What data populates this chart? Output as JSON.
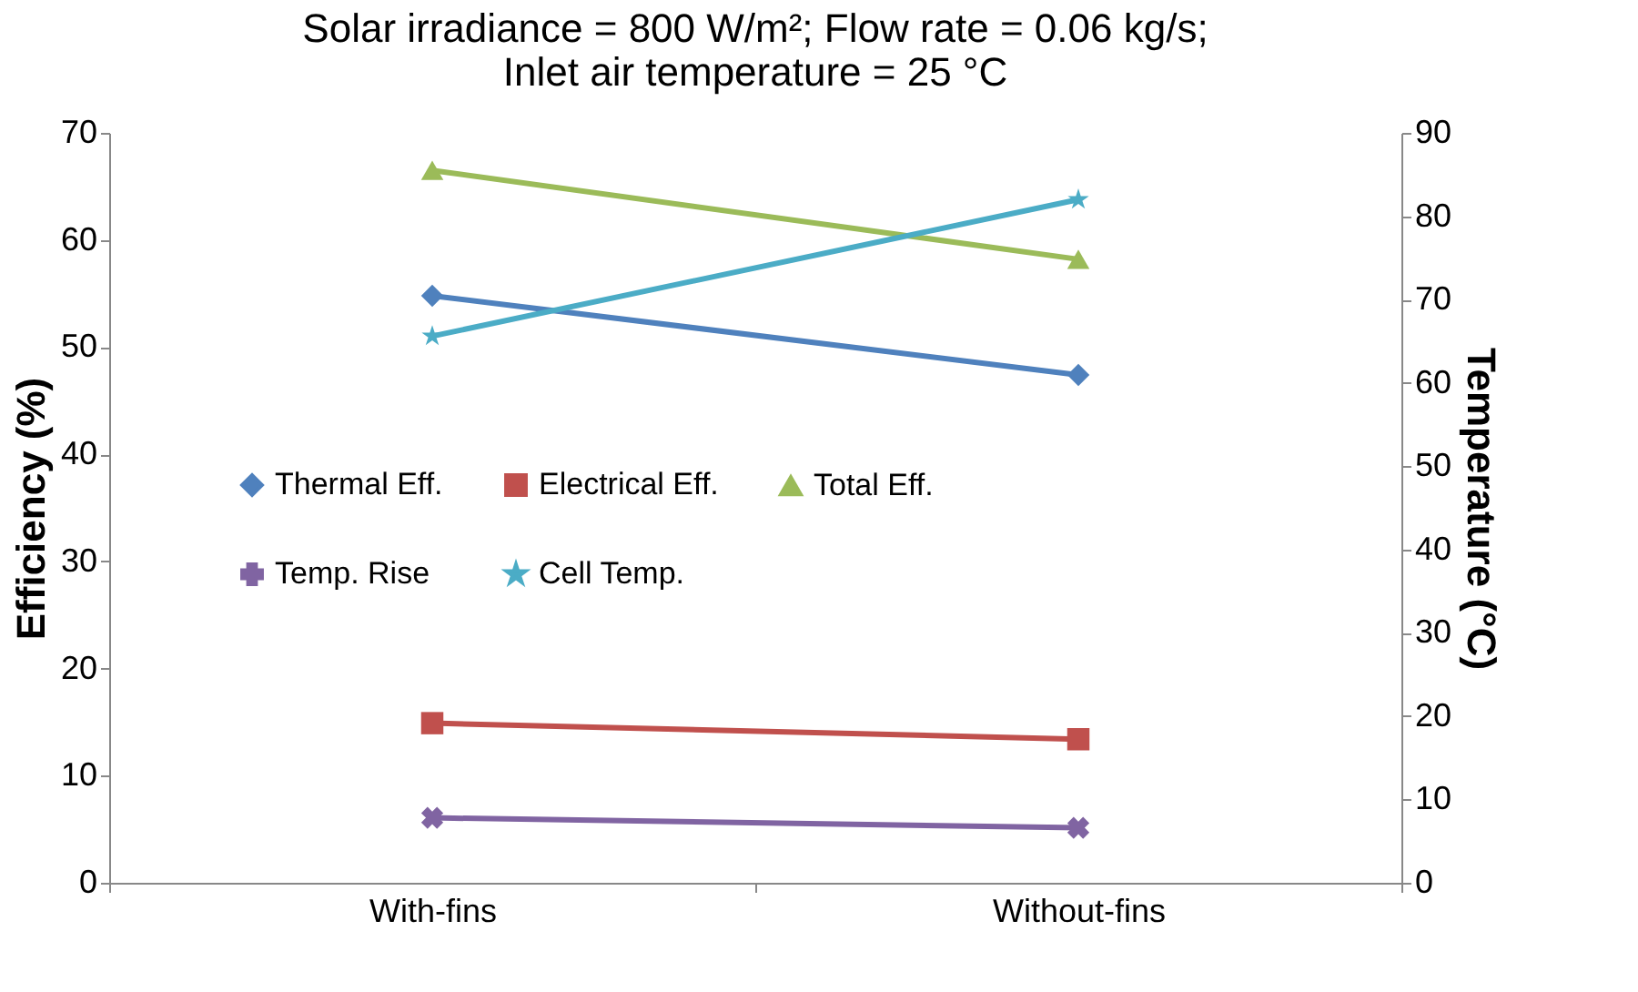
{
  "chart_data": {
    "type": "line",
    "title": "Solar irradiance = 800 W/m²; Flow rate = 0.06 kg/s;\nInlet air temperature = 25 °C",
    "categories": [
      "With-fins",
      "Without-fins"
    ],
    "ylabel": "Efficiency (%)",
    "y2label": "Temperature (°C)",
    "ylim": [
      0,
      70
    ],
    "yticks": [
      0,
      10,
      20,
      30,
      40,
      50,
      60,
      70
    ],
    "y2lim": [
      0,
      90
    ],
    "y2ticks": [
      0,
      10,
      20,
      30,
      40,
      50,
      60,
      70,
      80,
      90
    ],
    "grid": false,
    "legend": "left",
    "line_style": "solid",
    "series": [
      {
        "name": "Thermal Eff.",
        "color": "#4f81bd",
        "marker": "diamond",
        "values": [
          54.8,
          47.4
        ]
      },
      {
        "name": "Electrical Eff.",
        "color": "#c0504d",
        "marker": "square",
        "values": [
          14.9,
          13.4
        ]
      },
      {
        "name": "Total Eff.",
        "color": "#9bbb59",
        "marker": "triangle",
        "values": [
          66.5,
          58.2
        ]
      },
      {
        "name": "Temp. Rise",
        "color": "#8064a2",
        "marker": "cross",
        "values": [
          7.8,
          6.6
        ],
        "axis": "y2"
      },
      {
        "name": "Cell Temp.",
        "color": "#4bacc6",
        "marker": "star",
        "values": [
          65.6,
          82.0
        ],
        "axis": "y2"
      }
    ]
  }
}
